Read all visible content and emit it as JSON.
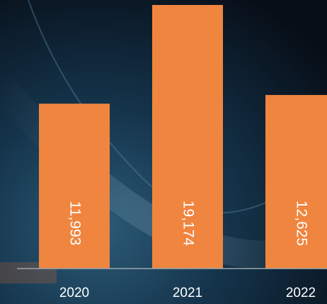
{
  "chart_data": {
    "type": "bar",
    "categories": [
      "2020",
      "2021",
      "2022"
    ],
    "values": [
      11993,
      19174,
      12625
    ],
    "value_labels": [
      "11,993",
      "19,174",
      "12,625"
    ],
    "color": "#f0853f"
  }
}
